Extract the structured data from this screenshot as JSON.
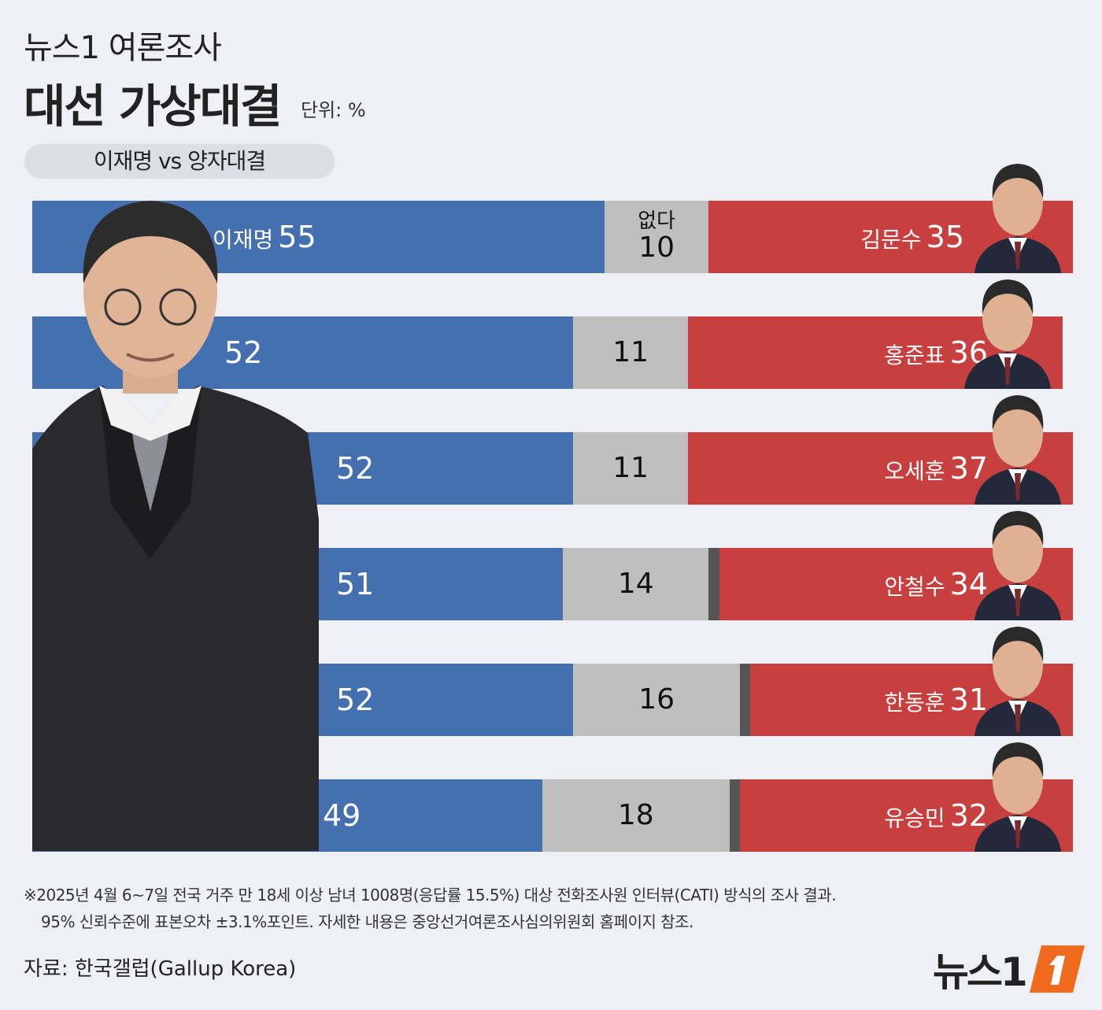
{
  "header": {
    "kicker": "뉴스1 여론조사",
    "title": "대선 가상대결",
    "unit": "단위: %",
    "subtitle": "이재명 vs 양자대결"
  },
  "colors": {
    "blue": "#4470b0",
    "gray": "#bfbfbf",
    "red": "#c7403f",
    "dark": "#555555",
    "background": "#eef0f6"
  },
  "chart_data": {
    "type": "bar",
    "orientation": "horizontal-stacked-100",
    "title": "대선 가상대결",
    "unit": "%",
    "series_labels": {
      "none": "없다"
    },
    "rows": [
      {
        "left_name": "이재명",
        "left": 55,
        "none": 10,
        "right_name": "김문수",
        "right": 35
      },
      {
        "left_name": "",
        "left": 52,
        "none": 11,
        "right_name": "홍준표",
        "right": 36
      },
      {
        "left_name": "",
        "left": 52,
        "none": 11,
        "right_name": "오세훈",
        "right": 37
      },
      {
        "left_name": "",
        "left": 51,
        "none": 14,
        "right_name": "안철수",
        "right": 34
      },
      {
        "left_name": "",
        "left": 52,
        "none": 16,
        "right_name": "한동훈",
        "right": 31
      },
      {
        "left_name": "",
        "left": 49,
        "none": 18,
        "right_name": "유승민",
        "right": 32
      }
    ]
  },
  "footer": {
    "note1": "※2025년 4월 6~7일 전국 거주 만 18세 이상 남녀 1008명(응답률 15.5%) 대상 전화조사원 인터뷰(CATI) 방식의 조사 결과.",
    "note2": "95% 신뢰수준에 표본오차 ±3.1%포인트. 자세한 내용은 중앙선거여론조사심의위원회 홈페이지 참조.",
    "source": "자료: 한국갤럽(Gallup Korea)",
    "logo_text": "뉴스1"
  }
}
